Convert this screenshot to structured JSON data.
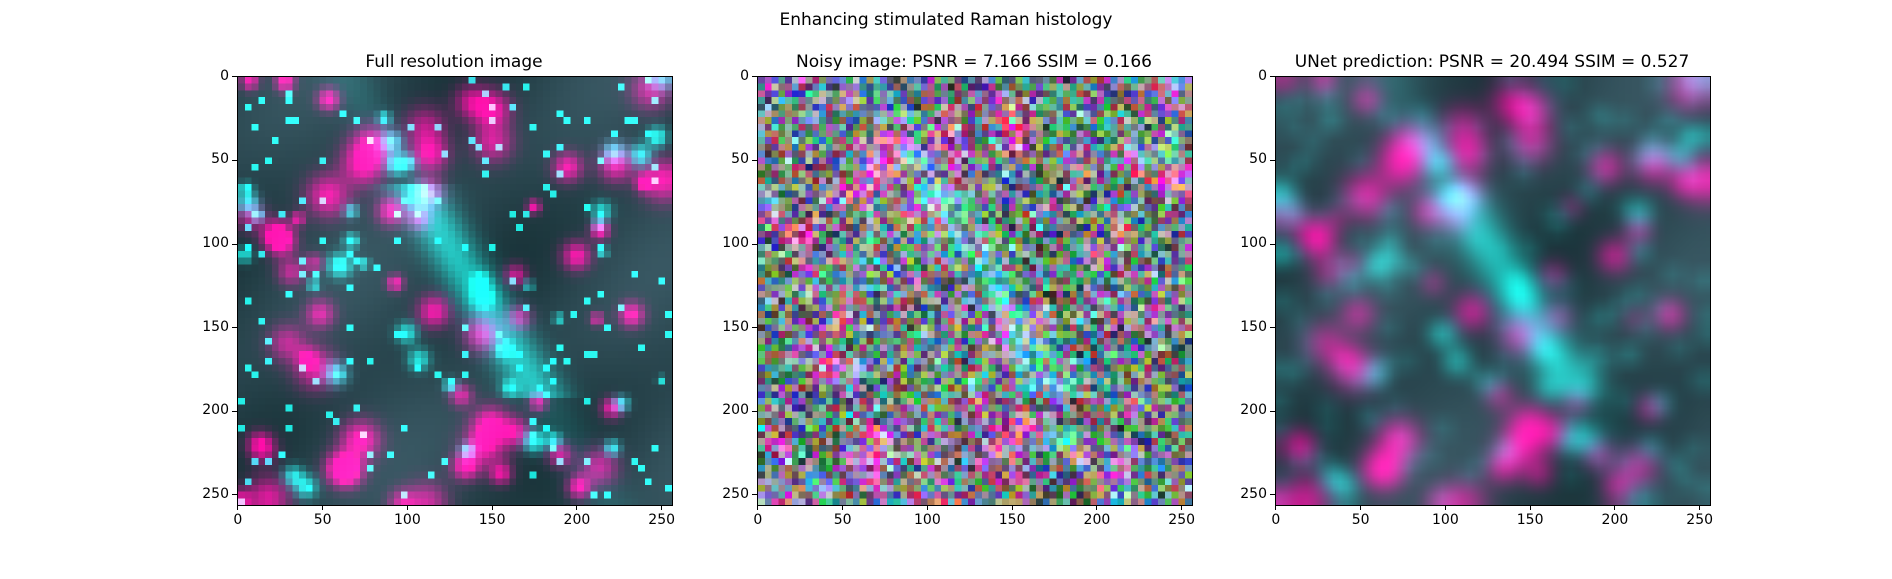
{
  "figure": {
    "suptitle": "Enhancing stimulated Raman histology",
    "panels": [
      {
        "title": "Full resolution image",
        "image": "sharp multicolor tissue micrograph: magenta-pink nuclei, cyan fibrous structures and bright cyan-green speckles on dark teal background",
        "style": "sharp",
        "x_ticks": [
          "0",
          "50",
          "100",
          "150",
          "200",
          "250"
        ],
        "y_ticks": [
          "0",
          "50",
          "100",
          "150",
          "200",
          "250"
        ],
        "xlim": [
          0,
          255
        ],
        "ylim": [
          255,
          0
        ]
      },
      {
        "title": "Noisy image: PSNR = 7.166 SSIM = 0.166",
        "image": "same field heavily corrupted by colorful per-pixel noise, faint cyan structures visible",
        "style": "noisy",
        "x_ticks": [
          "0",
          "50",
          "100",
          "150",
          "200",
          "250"
        ],
        "y_ticks": [
          "0",
          "50",
          "100",
          "150",
          "200",
          "250"
        ],
        "xlim": [
          0,
          255
        ],
        "ylim": [
          255,
          0
        ]
      },
      {
        "title": "UNet prediction: PSNR = 20.494 SSIM = 0.527",
        "image": "denoised smooth reconstruction: blurred magenta nuclei and cyan structures on dark teal background",
        "style": "smooth",
        "x_ticks": [
          "0",
          "50",
          "100",
          "150",
          "200",
          "250"
        ],
        "y_ticks": [
          "0",
          "50",
          "100",
          "150",
          "200",
          "250"
        ],
        "xlim": [
          0,
          255
        ],
        "ylim": [
          255,
          0
        ]
      }
    ]
  }
}
